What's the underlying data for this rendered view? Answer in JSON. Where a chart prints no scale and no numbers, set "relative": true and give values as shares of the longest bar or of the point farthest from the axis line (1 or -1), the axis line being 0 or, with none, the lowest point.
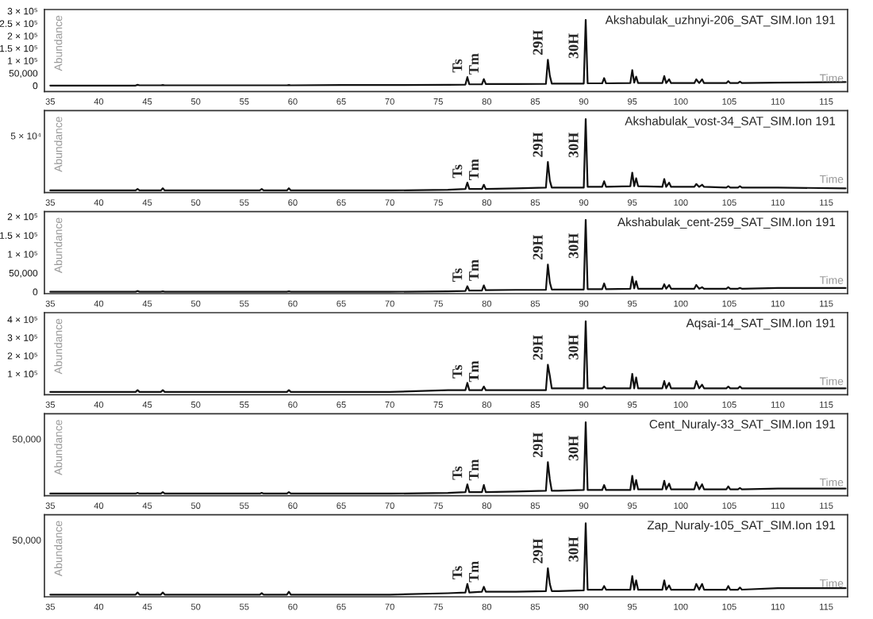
{
  "chart_data": [
    {
      "type": "line",
      "title": "Akshabulak_uzhnyi-206_SAT_SIM.Ion 191",
      "xlabel": "Time",
      "ylabel": "Abundance",
      "x": [
        35,
        43.8,
        44,
        44.2,
        46.4,
        46.6,
        46.8,
        56.6,
        56.8,
        57,
        59.4,
        59.6,
        59.8,
        65,
        70,
        76,
        77.8,
        78,
        78.2,
        79.5,
        79.7,
        79.9,
        83,
        86.1,
        86.3,
        86.5,
        86.7,
        87.4,
        90.0,
        90.2,
        90.4,
        91.9,
        92.1,
        92.3,
        94.8,
        95.0,
        95.2,
        95.4,
        95.6,
        98.1,
        98.3,
        98.5,
        98.8,
        99.0,
        101.4,
        101.6,
        101.9,
        102.2,
        102.4,
        104.7,
        104.9,
        105.1,
        105.9,
        106.1,
        106.3,
        110,
        117
      ],
      "series": [
        {
          "color": "#111111",
          "values": [
            0,
            0,
            3000,
            1000,
            1000,
            2000,
            1000,
            1000,
            1000,
            1000,
            1000,
            2000,
            1000,
            2000,
            2000,
            3000,
            4000,
            34000,
            5000,
            5000,
            26000,
            6000,
            6000,
            7000,
            104000,
            40000,
            8000,
            8000,
            8000,
            264000,
            9000,
            9000,
            30000,
            9000,
            10000,
            62000,
            12000,
            36000,
            10000,
            10000,
            38000,
            10000,
            25000,
            10000,
            10000,
            25000,
            10000,
            25000,
            10000,
            10000,
            18000,
            10000,
            10000,
            16000,
            10000,
            12000,
            14000
          ]
        }
      ],
      "annotations": [
        {
          "text": "Ts",
          "x": 78,
          "y": 34000
        },
        {
          "text": "Tm",
          "x": 79.7,
          "y": 26000
        },
        {
          "text": "29H",
          "x": 86.3,
          "y": 104000
        },
        {
          "text": "30H",
          "x": 90.2,
          "y": 264000
        }
      ],
      "xlim": [
        34.4,
        117.2
      ],
      "xticks": [
        35,
        40,
        45,
        50,
        55,
        60,
        65,
        70,
        75,
        80,
        85,
        90,
        95,
        100,
        105,
        110,
        115
      ],
      "ylim": [
        -24000,
        306000
      ],
      "yticks": [
        0,
        {
          "value": 50000,
          "label": "50,000"
        },
        {
          "value": 100000,
          "label": "1 × 10⁵"
        },
        {
          "value": 150000,
          "label": "1.5 × 10⁵"
        },
        {
          "value": 200000,
          "label": "2 × 10⁵"
        },
        {
          "value": 250000,
          "label": "2.5 × 10⁵"
        },
        {
          "value": 300000,
          "label": "3 × 10⁵"
        }
      ],
      "grid": false,
      "legend": false,
      "marker": "none",
      "line_style": "solid"
    },
    {
      "type": "line",
      "title": "Akshabulak_vost-34_SAT_SIM.Ion 191",
      "xlabel": "Time",
      "ylabel": "Abundance",
      "relative": true,
      "x": [
        35,
        43.8,
        44,
        44.2,
        46.4,
        46.6,
        46.8,
        56.6,
        56.8,
        57,
        59.4,
        59.6,
        59.8,
        65,
        70,
        76,
        77.8,
        78,
        78.2,
        79.5,
        79.7,
        79.9,
        83,
        86.1,
        86.3,
        86.5,
        86.7,
        87.4,
        90.0,
        90.2,
        90.4,
        91.9,
        92.1,
        92.3,
        94.8,
        95.0,
        95.2,
        95.4,
        95.6,
        98.1,
        98.3,
        98.5,
        98.8,
        99.0,
        101.4,
        101.6,
        101.9,
        102.2,
        102.4,
        104.7,
        104.9,
        105.1,
        105.9,
        106.1,
        106.3,
        110,
        117
      ],
      "series": [
        {
          "color": "#111111",
          "values": [
            0,
            0,
            0.02,
            0,
            0,
            0.03,
            0,
            0,
            0.02,
            0,
            0,
            0.03,
            0,
            0,
            0,
            0.01,
            0.02,
            0.11,
            0.02,
            0.02,
            0.08,
            0.02,
            0.03,
            0.04,
            0.4,
            0.14,
            0.04,
            0.04,
            0.04,
            1,
            0.05,
            0.05,
            0.13,
            0.05,
            0.06,
            0.25,
            0.06,
            0.17,
            0.06,
            0.05,
            0.16,
            0.05,
            0.11,
            0.05,
            0.05,
            0.09,
            0.05,
            0.08,
            0.05,
            0.04,
            0.06,
            0.04,
            0.04,
            0.06,
            0.04,
            0.04,
            0.03
          ]
        }
      ],
      "annotations": [
        {
          "text": "Ts",
          "x": 78,
          "y": 0.11
        },
        {
          "text": "Tm",
          "x": 79.7,
          "y": 0.08
        },
        {
          "text": "29H",
          "x": 86.3,
          "y": 0.4
        },
        {
          "text": "30H",
          "x": 90.2,
          "y": 1
        },
        "5 × 10⁴"
      ],
      "xlim": [
        34.4,
        117.2
      ],
      "xticks": [
        35,
        40,
        45,
        50,
        55,
        60,
        65,
        70,
        75,
        80,
        85,
        90,
        95,
        100,
        105,
        110,
        115
      ],
      "grid": false,
      "legend": false,
      "marker": "none",
      "line_style": "solid"
    },
    {
      "type": "line",
      "title": "Akshabulak_cent-259_SAT_SIM.Ion 191",
      "xlabel": "Time",
      "ylabel": "Abundance",
      "x": [
        35,
        43.8,
        44,
        44.2,
        46.4,
        46.6,
        46.8,
        56.6,
        56.8,
        57,
        59.4,
        59.6,
        59.8,
        65,
        70,
        76,
        77.8,
        78,
        78.2,
        79.5,
        79.7,
        79.9,
        83,
        86.1,
        86.3,
        86.5,
        86.7,
        87.4,
        90.0,
        90.2,
        90.4,
        91.9,
        92.1,
        92.3,
        94.8,
        95.0,
        95.2,
        95.4,
        95.6,
        98.1,
        98.3,
        98.5,
        98.8,
        99.0,
        101.4,
        101.6,
        101.9,
        102.2,
        102.4,
        104.7,
        104.9,
        105.1,
        105.9,
        106.1,
        106.3,
        110,
        117
      ],
      "series": [
        {
          "color": "#111111",
          "values": [
            0,
            0,
            2000,
            0,
            0,
            1000,
            0,
            0,
            0,
            0,
            0,
            1000,
            0,
            0,
            0,
            1000,
            2000,
            14500,
            3000,
            3000,
            17000,
            4000,
            5000,
            5000,
            72500,
            25000,
            6000,
            6000,
            6000,
            191000,
            7000,
            7000,
            22000,
            7000,
            8000,
            40000,
            9000,
            28000,
            8000,
            8000,
            20000,
            8000,
            18000,
            8000,
            8000,
            18000,
            8000,
            12000,
            8000,
            8000,
            12000,
            8000,
            8000,
            10000,
            8000,
            10000,
            10000
          ]
        }
      ],
      "annotations": [
        {
          "text": "Ts",
          "x": 78,
          "y": 14500
        },
        {
          "text": "Tm",
          "x": 79.7,
          "y": 17000
        },
        {
          "text": "29H",
          "x": 86.3,
          "y": 72500
        },
        {
          "text": "30H",
          "x": 90.2,
          "y": 191000
        }
      ],
      "xlim": [
        34.4,
        117.2
      ],
      "xticks": [
        35,
        40,
        45,
        50,
        55,
        60,
        65,
        70,
        75,
        80,
        85,
        90,
        95,
        100,
        105,
        110,
        115
      ],
      "ylim": [
        -5000,
        213000
      ],
      "yticks": [
        0,
        {
          "value": 50000,
          "label": "50,000"
        },
        {
          "value": 100000,
          "label": "1 × 10⁵"
        },
        {
          "value": 150000,
          "label": "1.5 × 10⁵"
        },
        {
          "value": 200000,
          "label": "2 × 10⁵"
        }
      ],
      "grid": false,
      "legend": false,
      "marker": "none",
      "line_style": "solid"
    },
    {
      "type": "line",
      "title": "Aqsai-14_SAT_SIM.Ion 191",
      "xlabel": "Time",
      "ylabel": "Abundance",
      "x": [
        35,
        43.8,
        44,
        44.2,
        46.4,
        46.6,
        46.8,
        56.6,
        56.8,
        57,
        59.4,
        59.6,
        59.8,
        65,
        70,
        76,
        77.8,
        78,
        78.2,
        79.5,
        79.7,
        79.9,
        83,
        86.1,
        86.3,
        86.5,
        86.7,
        87.4,
        90.0,
        90.2,
        90.4,
        91.9,
        92.1,
        92.3,
        94.8,
        95.0,
        95.2,
        95.4,
        95.6,
        98.1,
        98.3,
        98.5,
        98.8,
        99.0,
        101.4,
        101.6,
        101.9,
        102.2,
        102.4,
        104.7,
        104.9,
        105.1,
        105.9,
        106.1,
        106.3,
        110,
        117
      ],
      "series": [
        {
          "color": "#111111",
          "values": [
            0,
            0,
            10000,
            0,
            0,
            10000,
            0,
            0,
            0,
            0,
            0,
            10000,
            0,
            0,
            0,
            10000,
            10000,
            50000,
            10000,
            10000,
            30000,
            10000,
            10000,
            10000,
            150000,
            90000,
            20000,
            20000,
            20000,
            390000,
            20000,
            20000,
            30000,
            20000,
            20000,
            100000,
            20000,
            80000,
            20000,
            20000,
            60000,
            20000,
            50000,
            20000,
            20000,
            60000,
            20000,
            40000,
            20000,
            20000,
            30000,
            20000,
            20000,
            30000,
            20000,
            20000,
            20000
          ]
        }
      ],
      "annotations": [
        {
          "text": "Ts",
          "x": 78,
          "y": 50000
        },
        {
          "text": "Tm",
          "x": 79.7,
          "y": 30000
        },
        {
          "text": "29H",
          "x": 86.3,
          "y": 150000
        },
        {
          "text": "30H",
          "x": 90.2,
          "y": 390000
        }
      ],
      "xlim": [
        34.4,
        117.2
      ],
      "xticks": [
        35,
        40,
        45,
        50,
        55,
        60,
        65,
        70,
        75,
        80,
        85,
        90,
        95,
        100,
        105,
        110,
        115
      ],
      "ylim": [
        -15000,
        437000
      ],
      "yticks": [
        {
          "value": 100000,
          "label": "1 × 10⁵"
        },
        {
          "value": 200000,
          "label": "2 × 10⁵"
        },
        {
          "value": 300000,
          "label": "3 × 10⁵"
        },
        {
          "value": 400000,
          "label": "4 × 10⁵"
        }
      ],
      "grid": false,
      "legend": false,
      "marker": "none",
      "line_style": "solid"
    },
    {
      "type": "line",
      "title": "Cent_Nuraly-33_SAT_SIM.Ion 191",
      "xlabel": "Time",
      "ylabel": "Abundance",
      "relative": true,
      "x": [
        35,
        43.8,
        44,
        44.2,
        46.4,
        46.6,
        46.8,
        56.6,
        56.8,
        57,
        59.4,
        59.6,
        59.8,
        65,
        70,
        76,
        77.8,
        78,
        78.2,
        79.5,
        79.7,
        79.9,
        83,
        86.1,
        86.3,
        86.5,
        86.7,
        87.4,
        90.0,
        90.2,
        90.4,
        91.9,
        92.1,
        92.3,
        94.8,
        95.0,
        95.2,
        95.4,
        95.6,
        98.1,
        98.3,
        98.5,
        98.8,
        99.0,
        101.4,
        101.6,
        101.9,
        102.2,
        102.4,
        104.7,
        104.9,
        105.1,
        105.9,
        106.1,
        106.3,
        110,
        117
      ],
      "series": [
        {
          "color": "#111111",
          "values": [
            0,
            0,
            0.01,
            0,
            0,
            0.02,
            0,
            0,
            0.01,
            0,
            0,
            0.02,
            0,
            0,
            0,
            0.01,
            0.02,
            0.13,
            0.02,
            0.02,
            0.12,
            0.02,
            0.03,
            0.04,
            0.44,
            0.2,
            0.04,
            0.04,
            0.05,
            1,
            0.05,
            0.05,
            0.12,
            0.05,
            0.05,
            0.25,
            0.06,
            0.19,
            0.06,
            0.06,
            0.18,
            0.06,
            0.14,
            0.06,
            0.06,
            0.16,
            0.06,
            0.13,
            0.06,
            0.06,
            0.1,
            0.06,
            0.06,
            0.08,
            0.06,
            0.07,
            0.07
          ]
        }
      ],
      "annotations": [
        {
          "text": "Ts",
          "x": 78,
          "y": 0.13
        },
        {
          "text": "Tm",
          "x": 79.7,
          "y": 0.12
        },
        {
          "text": "29H",
          "x": 86.3,
          "y": 0.44
        },
        {
          "text": "30H",
          "x": 90.2,
          "y": 1
        },
        "50,000"
      ],
      "xlim": [
        34.4,
        117.2
      ],
      "xticks": [
        35,
        40,
        45,
        50,
        55,
        60,
        65,
        70,
        75,
        80,
        85,
        90,
        95,
        100,
        105,
        110,
        115
      ],
      "grid": false,
      "legend": false,
      "marker": "none",
      "line_style": "solid"
    },
    {
      "type": "line",
      "title": "Zap_Nuraly-105_SAT_SIM.Ion 191",
      "xlabel": "Time",
      "ylabel": "Abundance",
      "relative": true,
      "x": [
        35,
        43.8,
        44,
        44.2,
        46.4,
        46.6,
        46.8,
        56.6,
        56.8,
        57,
        59.4,
        59.6,
        59.8,
        65,
        70,
        76,
        77.8,
        78,
        78.2,
        79.5,
        79.7,
        79.9,
        83,
        86.1,
        86.3,
        86.5,
        86.7,
        87.4,
        90.0,
        90.2,
        90.4,
        91.9,
        92.1,
        92.3,
        94.8,
        95.0,
        95.2,
        95.4,
        95.6,
        98.1,
        98.3,
        98.5,
        98.8,
        99.0,
        101.4,
        101.6,
        101.9,
        102.2,
        102.4,
        104.7,
        104.9,
        105.1,
        105.9,
        106.1,
        106.3,
        110,
        117
      ],
      "series": [
        {
          "color": "#111111",
          "values": [
            0,
            0,
            0.03,
            0,
            0,
            0.03,
            0,
            0,
            0.02,
            0,
            0,
            0.04,
            0,
            0,
            0,
            0.02,
            0.03,
            0.15,
            0.03,
            0.04,
            0.11,
            0.04,
            0.04,
            0.05,
            0.37,
            0.15,
            0.05,
            0.05,
            0.06,
            1,
            0.07,
            0.07,
            0.12,
            0.07,
            0.07,
            0.26,
            0.07,
            0.2,
            0.07,
            0.07,
            0.2,
            0.07,
            0.13,
            0.07,
            0.07,
            0.15,
            0.07,
            0.15,
            0.07,
            0.07,
            0.12,
            0.07,
            0.07,
            0.1,
            0.07,
            0.09,
            0.09
          ]
        }
      ],
      "annotations": [
        {
          "text": "Ts",
          "x": 78,
          "y": 0.15
        },
        {
          "text": "Tm",
          "x": 79.7,
          "y": 0.11
        },
        {
          "text": "29H",
          "x": 86.3,
          "y": 0.37
        },
        {
          "text": "30H",
          "x": 90.2,
          "y": 1
        },
        "50,000"
      ],
      "xlim": [
        34.4,
        117.2
      ],
      "xticks": [
        35,
        40,
        45,
        50,
        55,
        60,
        65,
        70,
        75,
        80,
        85,
        90,
        95,
        100,
        105,
        110,
        115
      ],
      "grid": false,
      "legend": false,
      "marker": "none",
      "line_style": "solid"
    }
  ]
}
